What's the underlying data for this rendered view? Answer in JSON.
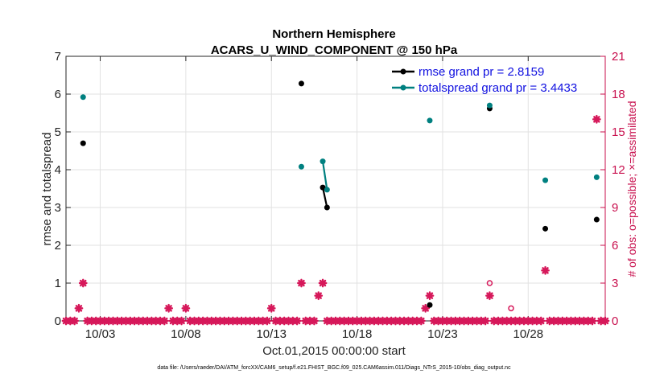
{
  "chart_data": {
    "type": "scatter",
    "title": "Northern Hemisphere",
    "subtitle": "ACARS_U_WIND_COMPONENT @ 150 hPa",
    "xlabel": "Oct.01,2015 00:00:00 start",
    "ylabel": "rmse and totalspread",
    "y2label": "# of obs: o=possible; ×=assimilated",
    "footnote": "data file: /Users/raeder/DAI/ATM_forcXX/CAM6_setup/f.e21.FHIST_BGC.f09_025.CAM6assim.011/Diags_NTrS_2015-10/obs_diag_output.nc",
    "xlim": [
      1,
      32.5
    ],
    "ylim": [
      0,
      7
    ],
    "y2lim": [
      0,
      21
    ],
    "x_ticks": [
      3,
      8,
      13,
      18,
      23,
      28
    ],
    "x_tick_labels": [
      "10/03",
      "10/08",
      "10/13",
      "10/18",
      "10/23",
      "10/28"
    ],
    "y_ticks": [
      0,
      1,
      2,
      3,
      4,
      5,
      6,
      7
    ],
    "y2_ticks": [
      0,
      3,
      6,
      9,
      12,
      15,
      18,
      21
    ],
    "grid": true,
    "legend_position": "top-right",
    "colors": {
      "rmse": "#000000",
      "totalspread": "#008080",
      "obs": "#d6185a",
      "grid": "#e2e2e2"
    },
    "series": [
      {
        "name": "rmse grand pr = 2.8159",
        "role": "rmse",
        "points": [
          [
            2.0,
            4.7
          ],
          [
            14.75,
            6.28
          ],
          [
            16.0,
            3.53
          ],
          [
            16.25,
            3.0
          ],
          [
            22.25,
            0.42
          ],
          [
            25.75,
            5.62
          ],
          [
            29.0,
            2.44
          ],
          [
            32.0,
            2.68
          ]
        ],
        "segments": [
          [
            [
              16.0,
              3.53
            ],
            [
              16.25,
              3.0
            ]
          ]
        ]
      },
      {
        "name": "totalspread grand pr = 3.4433",
        "role": "totalspread",
        "points": [
          [
            2.0,
            5.92
          ],
          [
            14.75,
            4.08
          ],
          [
            16.0,
            4.22
          ],
          [
            16.25,
            3.47
          ],
          [
            22.25,
            5.3
          ],
          [
            25.75,
            5.7
          ],
          [
            29.0,
            3.72
          ],
          [
            32.0,
            3.8
          ]
        ],
        "segments": [
          [
            [
              16.0,
              4.22
            ],
            [
              16.25,
              3.47
            ]
          ]
        ]
      }
    ],
    "obs_assimilated_x_start": 1,
    "obs_assimilated_x_step": 0.25,
    "obs_assimilated_nonzero": [
      [
        1.75,
        1
      ],
      [
        2.0,
        3
      ],
      [
        7.0,
        1
      ],
      [
        8.0,
        1
      ],
      [
        13.0,
        1
      ],
      [
        14.75,
        3
      ],
      [
        15.75,
        2
      ],
      [
        16.0,
        3
      ],
      [
        22.0,
        1
      ],
      [
        22.25,
        2
      ],
      [
        25.75,
        2
      ],
      [
        29.0,
        4
      ],
      [
        32.0,
        16
      ]
    ],
    "obs_assimilated_count": 127,
    "obs_possible": [
      [
        25.75,
        3
      ],
      [
        27.0,
        1
      ]
    ]
  }
}
